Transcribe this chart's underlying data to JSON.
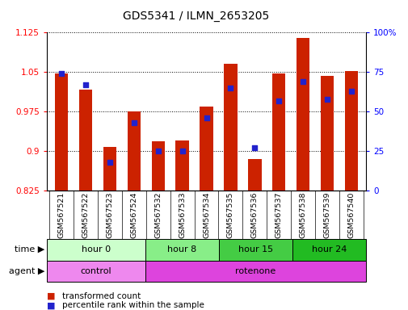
{
  "title": "GDS5341 / ILMN_2653205",
  "samples": [
    "GSM567521",
    "GSM567522",
    "GSM567523",
    "GSM567524",
    "GSM567532",
    "GSM567533",
    "GSM567534",
    "GSM567535",
    "GSM567536",
    "GSM567537",
    "GSM567538",
    "GSM567539",
    "GSM567540"
  ],
  "bar_values": [
    1.047,
    1.017,
    0.908,
    0.975,
    0.918,
    0.92,
    0.984,
    1.065,
    0.885,
    1.047,
    1.115,
    1.043,
    1.052
  ],
  "percentile_values": [
    74,
    67,
    18,
    43,
    25,
    25,
    46,
    65,
    27,
    57,
    69,
    58,
    63
  ],
  "ylim": [
    0.825,
    1.125
  ],
  "yticks": [
    0.825,
    0.9,
    0.975,
    1.05,
    1.125
  ],
  "ytick_labels": [
    "0.825",
    "0.9",
    "0.975",
    "1.05",
    "1.125"
  ],
  "right_yticks": [
    0,
    25,
    50,
    75,
    100
  ],
  "right_ytick_labels": [
    "0",
    "25",
    "50",
    "75",
    "100%"
  ],
  "bar_color": "#cc2200",
  "dot_color": "#2222cc",
  "time_groups": [
    {
      "label": "hour 0",
      "start": 0,
      "end": 4,
      "color": "#ccffcc"
    },
    {
      "label": "hour 8",
      "start": 4,
      "end": 7,
      "color": "#88ee88"
    },
    {
      "label": "hour 15",
      "start": 7,
      "end": 10,
      "color": "#44cc44"
    },
    {
      "label": "hour 24",
      "start": 10,
      "end": 13,
      "color": "#22bb22"
    }
  ],
  "agent_groups": [
    {
      "label": "control",
      "start": 0,
      "end": 4,
      "color": "#ee88ee"
    },
    {
      "label": "rotenone",
      "start": 4,
      "end": 13,
      "color": "#dd44dd"
    }
  ],
  "legend_red_label": "transformed count",
  "legend_blue_label": "percentile rank within the sample",
  "bg_color": "#ffffff",
  "bar_width": 0.55
}
